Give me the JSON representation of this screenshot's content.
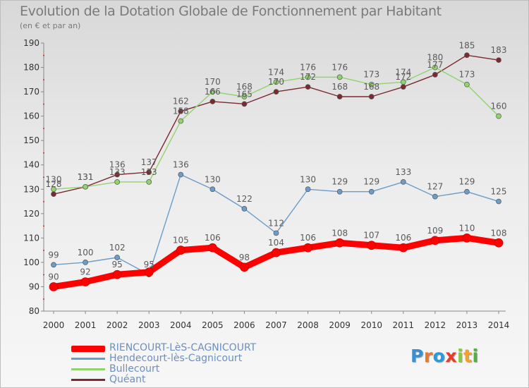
{
  "title": "Evolution de la Dotation Globale de Fonctionnement par Habitant",
  "subtitle": "(en € et par an)",
  "logo": {
    "p": "P",
    "r": "r",
    "o": "o",
    "x": "x",
    "i": "i",
    "t": "t",
    "i2": "i"
  },
  "chart_data": {
    "type": "line",
    "title": "Evolution de la Dotation Globale de Fonctionnement par Habitant",
    "subtitle": "(en € et par an)",
    "x": [
      "2000",
      "2001",
      "2002",
      "2003",
      "2004",
      "2005",
      "2006",
      "2007",
      "2008",
      "2009",
      "2010",
      "2011",
      "2012",
      "2013",
      "2014"
    ],
    "ylim": [
      80,
      190
    ],
    "yticks": [
      80,
      90,
      100,
      110,
      120,
      130,
      140,
      150,
      160,
      170,
      180,
      190
    ],
    "grid": false,
    "legend": "bottom-left",
    "series": [
      {
        "name": "RIENCOURT-LèS-CAGNICOURT",
        "color": "#ff0000",
        "bold": true,
        "values": [
          90,
          92,
          95,
          96,
          105,
          106,
          98,
          104,
          106,
          108,
          107,
          106,
          109,
          110,
          108
        ],
        "labels": [
          "90",
          "92",
          "95",
          "",
          "105",
          "106",
          "98",
          "104",
          "106",
          "108",
          "107",
          "106",
          "109",
          "110",
          "108"
        ]
      },
      {
        "name": "Hendecourt-lès-Cagnicourt",
        "color": "#6c9cc8",
        "values": [
          99,
          100,
          102,
          95,
          136,
          130,
          122,
          112,
          130,
          129,
          129,
          133,
          127,
          129,
          125
        ],
        "labels": [
          "99",
          "100",
          "102",
          "95",
          "136",
          "130",
          "122",
          "112",
          "130",
          "129",
          "129",
          "133",
          "127",
          "129",
          "125"
        ]
      },
      {
        "name": "Bullecourt",
        "color": "#8fd46c",
        "values": [
          130,
          131,
          133,
          133,
          158,
          170,
          168,
          174,
          176,
          176,
          173,
          174,
          180,
          173,
          160
        ],
        "labels": [
          "130",
          "131",
          "133",
          "133",
          "158",
          "170",
          "168",
          "174",
          "176",
          "176",
          "173",
          "174",
          "180",
          "173",
          "160"
        ]
      },
      {
        "name": "Quéant",
        "color": "#7a2a30",
        "values": [
          128,
          131,
          136,
          137,
          162,
          166,
          165,
          170,
          172,
          168,
          168,
          172,
          177,
          185,
          183
        ],
        "labels": [
          "128",
          "131",
          "136",
          "137",
          "162",
          "166",
          "165",
          "170",
          "172",
          "168",
          "168",
          "172",
          "177",
          "185",
          "183"
        ]
      }
    ]
  }
}
